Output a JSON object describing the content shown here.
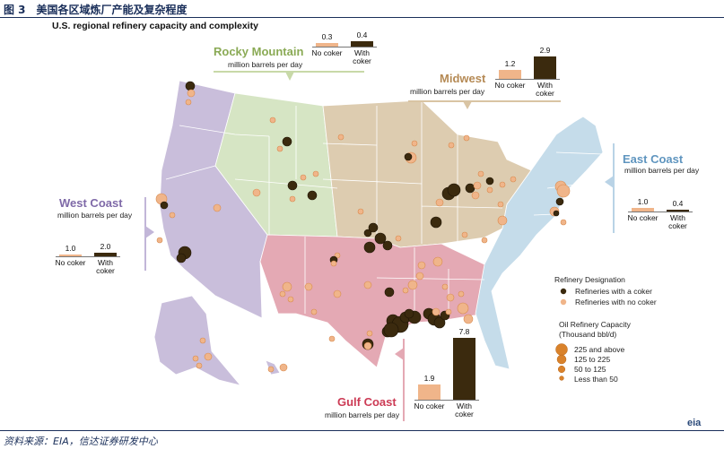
{
  "figure": {
    "title": "图 3　美国各区域炼厂产能及复杂程度",
    "subtitle": "U.S. regional refinery capacity and complexity",
    "source": "资料来源：EIA，信达证券研发中心",
    "logo": "eia"
  },
  "colors": {
    "no_coker": "#f0b58a",
    "with_coker": "#3b2a0e",
    "west_coast": "#c9bedb",
    "rocky_mountain": "#d6e5c4",
    "midwest": "#ddccb0",
    "gulf_coast": "#e4a9b4",
    "east_coast": "#c5dcea",
    "state_border": "#ffffff"
  },
  "chart_data": [
    {
      "type": "bar",
      "region": "West Coast",
      "title": "West Coast",
      "unit": "million barrels per day",
      "categories": [
        "No coker",
        "With coker"
      ],
      "values": [
        1.0,
        2.0
      ],
      "ylim": [
        0,
        7.8
      ]
    },
    {
      "type": "bar",
      "region": "Rocky Mountain",
      "title": "Rocky Mountain",
      "unit": "million barrels per day",
      "categories": [
        "No coker",
        "With coker"
      ],
      "values": [
        0.3,
        0.4
      ],
      "ylim": [
        0,
        7.8
      ]
    },
    {
      "type": "bar",
      "region": "Midwest",
      "title": "Midwest",
      "unit": "million barrels per day",
      "categories": [
        "No coker",
        "With coker"
      ],
      "values": [
        1.2,
        2.9
      ],
      "ylim": [
        0,
        7.8
      ]
    },
    {
      "type": "bar",
      "region": "Gulf Coast",
      "title": "Gulf Coast",
      "unit": "million barrels per day",
      "categories": [
        "No coker",
        "With coker"
      ],
      "values": [
        1.9,
        7.8
      ],
      "ylim": [
        0,
        7.8
      ]
    },
    {
      "type": "bar",
      "region": "East Coast",
      "title": "East Coast",
      "unit": "million barrels per day",
      "categories": [
        "No coker",
        "With coker"
      ],
      "values": [
        1.0,
        0.4
      ],
      "ylim": [
        0,
        7.8
      ]
    }
  ],
  "legend": {
    "designation_title": "Refinery Designation",
    "designation_items": [
      "Refineries with a coker",
      "Refineries with no coker"
    ],
    "capacity_title": "Oil Refinery Capacity",
    "capacity_unit": "(Thousand bbl/d)",
    "capacity_items": [
      "225 and above",
      "125 to 225",
      "50 to 125",
      "Less than 50"
    ]
  }
}
